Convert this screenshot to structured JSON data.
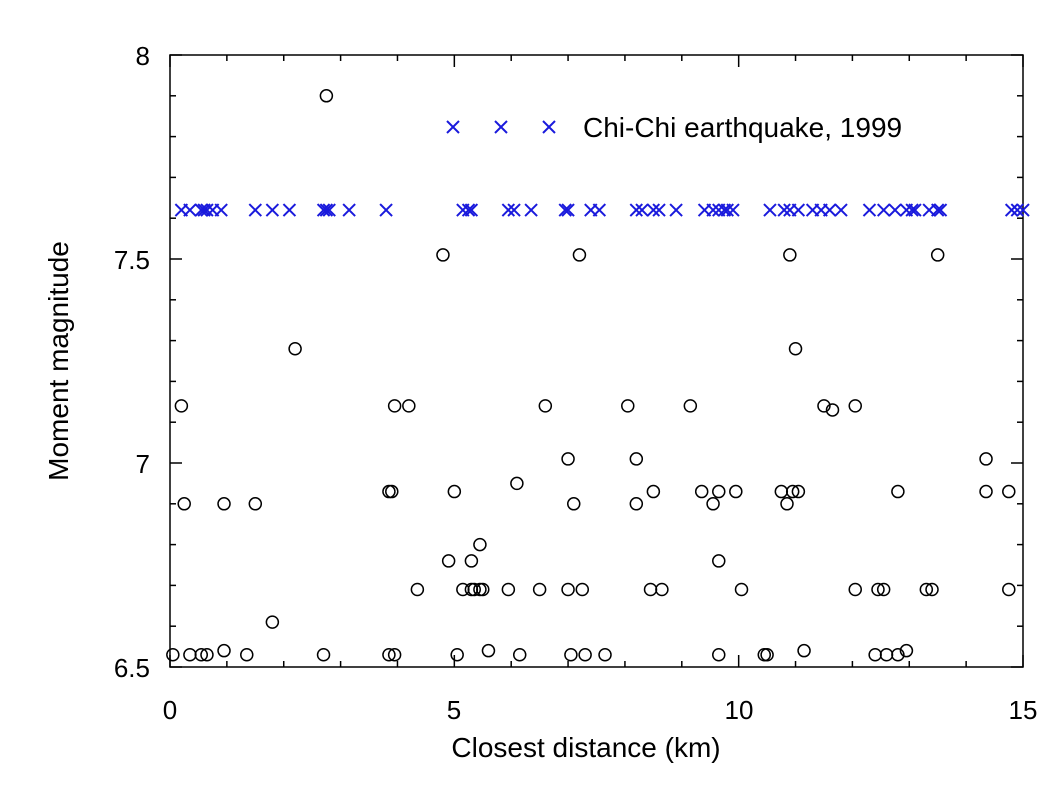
{
  "chart_data": {
    "type": "scatter",
    "title": "",
    "xlabel": "Closest distance (km)",
    "ylabel": "Moment magnitude",
    "xlim": [
      0,
      15
    ],
    "ylim": [
      6.5,
      8
    ],
    "xticks": [
      "0",
      "5",
      "10",
      "15"
    ],
    "yticks": [
      "6.5",
      "7",
      "7.5",
      "8"
    ],
    "grid": false,
    "legend_position": "top-right",
    "legend_label": "Chi-Chi earthquake, 1999",
    "colors": {
      "chichi": "#1a1adc",
      "other": "#000000"
    },
    "series": [
      {
        "name": "Chi-Chi earthquake, 1999",
        "marker": "x",
        "points": [
          [
            0.2,
            7.62
          ],
          [
            0.35,
            7.62
          ],
          [
            0.55,
            7.62
          ],
          [
            0.6,
            7.62
          ],
          [
            0.65,
            7.62
          ],
          [
            0.75,
            7.62
          ],
          [
            0.9,
            7.62
          ],
          [
            1.5,
            7.62
          ],
          [
            1.8,
            7.62
          ],
          [
            2.1,
            7.62
          ],
          [
            2.7,
            7.62
          ],
          [
            2.75,
            7.62
          ],
          [
            2.8,
            7.62
          ],
          [
            3.15,
            7.62
          ],
          [
            3.8,
            7.62
          ],
          [
            5.15,
            7.62
          ],
          [
            5.25,
            7.62
          ],
          [
            5.3,
            7.62
          ],
          [
            5.95,
            7.62
          ],
          [
            6.05,
            7.62
          ],
          [
            6.35,
            7.62
          ],
          [
            6.95,
            7.62
          ],
          [
            7.0,
            7.62
          ],
          [
            7.4,
            7.62
          ],
          [
            7.55,
            7.62
          ],
          [
            8.2,
            7.62
          ],
          [
            8.3,
            7.62
          ],
          [
            8.5,
            7.62
          ],
          [
            8.6,
            7.62
          ],
          [
            8.9,
            7.62
          ],
          [
            9.4,
            7.62
          ],
          [
            9.55,
            7.62
          ],
          [
            9.65,
            7.62
          ],
          [
            9.75,
            7.62
          ],
          [
            9.8,
            7.62
          ],
          [
            9.9,
            7.62
          ],
          [
            10.55,
            7.62
          ],
          [
            10.8,
            7.62
          ],
          [
            10.9,
            7.62
          ],
          [
            11.05,
            7.62
          ],
          [
            11.3,
            7.62
          ],
          [
            11.45,
            7.62
          ],
          [
            11.6,
            7.62
          ],
          [
            11.8,
            7.62
          ],
          [
            12.3,
            7.62
          ],
          [
            12.55,
            7.62
          ],
          [
            12.75,
            7.62
          ],
          [
            12.95,
            7.62
          ],
          [
            13.05,
            7.62
          ],
          [
            13.1,
            7.62
          ],
          [
            13.35,
            7.62
          ],
          [
            13.5,
            7.62
          ],
          [
            13.55,
            7.62
          ],
          [
            14.8,
            7.62
          ],
          [
            14.9,
            7.62
          ],
          [
            15.0,
            7.62
          ]
        ]
      },
      {
        "marker": "o",
        "points": [
          [
            0.05,
            6.53
          ],
          [
            0.35,
            6.53
          ],
          [
            0.55,
            6.53
          ],
          [
            0.65,
            6.53
          ],
          [
            0.95,
            6.54
          ],
          [
            1.35,
            6.53
          ],
          [
            2.7,
            6.53
          ],
          [
            3.85,
            6.53
          ],
          [
            3.95,
            6.53
          ],
          [
            5.05,
            6.53
          ],
          [
            5.6,
            6.54
          ],
          [
            6.15,
            6.53
          ],
          [
            7.05,
            6.53
          ],
          [
            7.3,
            6.53
          ],
          [
            7.65,
            6.53
          ],
          [
            9.65,
            6.53
          ],
          [
            10.45,
            6.53
          ],
          [
            10.5,
            6.53
          ],
          [
            11.15,
            6.54
          ],
          [
            12.4,
            6.53
          ],
          [
            12.6,
            6.53
          ],
          [
            12.8,
            6.53
          ],
          [
            12.95,
            6.54
          ],
          [
            1.8,
            6.61
          ],
          [
            4.35,
            6.69
          ],
          [
            5.15,
            6.69
          ],
          [
            5.3,
            6.69
          ],
          [
            5.35,
            6.69
          ],
          [
            5.45,
            6.69
          ],
          [
            5.5,
            6.69
          ],
          [
            5.95,
            6.69
          ],
          [
            6.5,
            6.69
          ],
          [
            7.0,
            6.69
          ],
          [
            7.25,
            6.69
          ],
          [
            8.45,
            6.69
          ],
          [
            8.65,
            6.69
          ],
          [
            10.05,
            6.69
          ],
          [
            12.05,
            6.69
          ],
          [
            12.45,
            6.69
          ],
          [
            12.55,
            6.69
          ],
          [
            13.3,
            6.69
          ],
          [
            13.4,
            6.69
          ],
          [
            14.75,
            6.69
          ],
          [
            4.9,
            6.76
          ],
          [
            5.3,
            6.76
          ],
          [
            9.65,
            6.76
          ],
          [
            5.45,
            6.8
          ],
          [
            0.25,
            6.9
          ],
          [
            0.95,
            6.9
          ],
          [
            1.5,
            6.9
          ],
          [
            7.1,
            6.9
          ],
          [
            8.2,
            6.9
          ],
          [
            9.55,
            6.9
          ],
          [
            10.85,
            6.9
          ],
          [
            3.85,
            6.93
          ],
          [
            3.9,
            6.93
          ],
          [
            5.0,
            6.93
          ],
          [
            8.5,
            6.93
          ],
          [
            9.35,
            6.93
          ],
          [
            9.65,
            6.93
          ],
          [
            9.95,
            6.93
          ],
          [
            10.75,
            6.93
          ],
          [
            10.95,
            6.93
          ],
          [
            11.05,
            6.93
          ],
          [
            12.8,
            6.93
          ],
          [
            14.35,
            6.93
          ],
          [
            14.75,
            6.93
          ],
          [
            6.1,
            6.95
          ],
          [
            7.0,
            7.01
          ],
          [
            8.2,
            7.01
          ],
          [
            14.35,
            7.01
          ],
          [
            11.65,
            7.13
          ],
          [
            0.2,
            7.14
          ],
          [
            3.95,
            7.14
          ],
          [
            4.2,
            7.14
          ],
          [
            6.6,
            7.14
          ],
          [
            8.05,
            7.14
          ],
          [
            9.15,
            7.14
          ],
          [
            11.5,
            7.14
          ],
          [
            12.05,
            7.14
          ],
          [
            2.2,
            7.28
          ],
          [
            11.0,
            7.28
          ],
          [
            4.8,
            7.51
          ],
          [
            7.2,
            7.51
          ],
          [
            10.9,
            7.51
          ],
          [
            13.5,
            7.51
          ],
          [
            2.75,
            7.9
          ]
        ]
      }
    ]
  }
}
